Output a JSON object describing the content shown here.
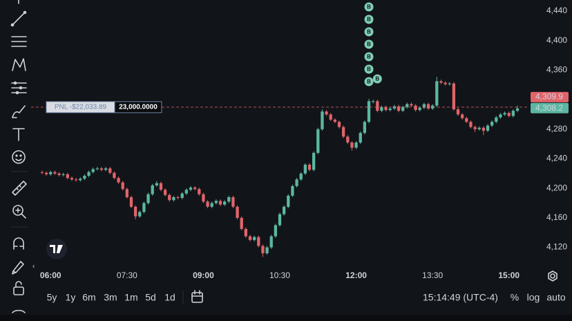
{
  "chart_data": {
    "type": "candlestick",
    "x": [
      350,
      355,
      360,
      365,
      370,
      375,
      380,
      385,
      390,
      395,
      400,
      405,
      410,
      415,
      420,
      425,
      430,
      435,
      440,
      445,
      450,
      455,
      460,
      465,
      470,
      475,
      480,
      485,
      490,
      495,
      500,
      505,
      510,
      515,
      520,
      525,
      530,
      535,
      540,
      545,
      550,
      555,
      560,
      565,
      570,
      575,
      580,
      585,
      590,
      595,
      600,
      605,
      610,
      615,
      620,
      625,
      630,
      635,
      640,
      645,
      650,
      655,
      660,
      665,
      670,
      675,
      680,
      685,
      690,
      695,
      700,
      705,
      710,
      715,
      720,
      725,
      730,
      735,
      740,
      745,
      750,
      755,
      760,
      765,
      770,
      775,
      780,
      785,
      790,
      795,
      800,
      805,
      810,
      815,
      820,
      825,
      830,
      835,
      840,
      845,
      850,
      855,
      860,
      865,
      870,
      875,
      880,
      885,
      890,
      895,
      900,
      905,
      910
    ],
    "open": [
      4222,
      4221,
      4219,
      4222,
      4220,
      4218,
      4219,
      4214,
      4212,
      4211,
      4213,
      4217,
      4222,
      4226,
      4227,
      4225,
      4227,
      4221,
      4214,
      4208,
      4199,
      4188,
      4175,
      4162,
      4168,
      4180,
      4192,
      4204,
      4207,
      4198,
      4191,
      4184,
      4188,
      4187,
      4193,
      4198,
      4201,
      4199,
      4192,
      4182,
      4175,
      4180,
      4183,
      4178,
      4182,
      4188,
      4175,
      4160,
      4145,
      4135,
      4130,
      4134,
      4122,
      4112,
      4120,
      4135,
      4150,
      4165,
      4175,
      4190,
      4203,
      4212,
      4220,
      4232,
      4225,
      4248,
      4280,
      4304,
      4300,
      4293,
      4290,
      4283,
      4270,
      4262,
      4255,
      4262,
      4275,
      4290,
      4318,
      4318,
      4305,
      4310,
      4306,
      4308,
      4311,
      4305,
      4310,
      4314,
      4312,
      4306,
      4309,
      4314,
      4308,
      4312,
      4345,
      4343,
      4341,
      4342,
      4307,
      4300,
      4295,
      4290,
      4283,
      4280,
      4282,
      4278,
      4285,
      4290,
      4296,
      4300,
      4302,
      4298,
      4305
    ],
    "high": [
      4224,
      4223,
      4224,
      4224,
      4222,
      4221,
      4221,
      4216,
      4214,
      4215,
      4219,
      4224,
      4228,
      4229,
      4229,
      4229,
      4229,
      4223,
      4216,
      4210,
      4201,
      4190,
      4177,
      4170,
      4182,
      4194,
      4206,
      4210,
      4209,
      4200,
      4193,
      4190,
      4190,
      4195,
      4200,
      4203,
      4203,
      4201,
      4194,
      4184,
      4182,
      4185,
      4185,
      4184,
      4190,
      4190,
      4177,
      4162,
      4147,
      4137,
      4136,
      4136,
      4124,
      4122,
      4137,
      4152,
      4167,
      4177,
      4192,
      4205,
      4214,
      4222,
      4234,
      4234,
      4250,
      4282,
      4307,
      4306,
      4302,
      4295,
      4292,
      4285,
      4272,
      4264,
      4264,
      4277,
      4292,
      4321,
      4320,
      4320,
      4312,
      4312,
      4310,
      4313,
      4313,
      4312,
      4316,
      4316,
      4314,
      4311,
      4316,
      4316,
      4314,
      4351,
      4347,
      4345,
      4344,
      4344,
      4309,
      4302,
      4297,
      4292,
      4285,
      4284,
      4284,
      4287,
      4292,
      4298,
      4302,
      4304,
      4304,
      4307,
      4312
    ],
    "low": [
      4219,
      4217,
      4217,
      4218,
      4216,
      4216,
      4212,
      4210,
      4209,
      4209,
      4211,
      4215,
      4220,
      4224,
      4223,
      4223,
      4219,
      4212,
      4206,
      4197,
      4186,
      4173,
      4158,
      4160,
      4166,
      4178,
      4190,
      4202,
      4196,
      4189,
      4182,
      4182,
      4185,
      4185,
      4191,
      4196,
      4197,
      4190,
      4180,
      4173,
      4173,
      4178,
      4176,
      4176,
      4180,
      4173,
      4158,
      4143,
      4133,
      4128,
      4128,
      4120,
      4107,
      4110,
      4118,
      4133,
      4148,
      4163,
      4173,
      4188,
      4201,
      4210,
      4218,
      4223,
      4223,
      4246,
      4278,
      4298,
      4291,
      4288,
      4281,
      4268,
      4260,
      4251,
      4253,
      4260,
      4273,
      4288,
      4315,
      4303,
      4303,
      4304,
      4304,
      4306,
      4303,
      4303,
      4308,
      4310,
      4304,
      4304,
      4307,
      4306,
      4306,
      4310,
      4341,
      4339,
      4339,
      4305,
      4298,
      4293,
      4288,
      4281,
      4276,
      4278,
      4272,
      4276,
      4283,
      4288,
      4294,
      4298,
      4296,
      4296,
      4303
    ],
    "close": [
      4221,
      4219,
      4222,
      4220,
      4218,
      4219,
      4214,
      4212,
      4211,
      4213,
      4217,
      4222,
      4226,
      4227,
      4225,
      4227,
      4221,
      4214,
      4208,
      4199,
      4188,
      4175,
      4162,
      4168,
      4180,
      4192,
      4204,
      4207,
      4198,
      4191,
      4184,
      4188,
      4187,
      4193,
      4198,
      4201,
      4199,
      4192,
      4182,
      4175,
      4180,
      4183,
      4178,
      4182,
      4188,
      4175,
      4160,
      4145,
      4135,
      4130,
      4134,
      4122,
      4112,
      4120,
      4135,
      4150,
      4165,
      4175,
      4190,
      4203,
      4212,
      4220,
      4232,
      4225,
      4248,
      4280,
      4304,
      4300,
      4293,
      4290,
      4283,
      4270,
      4262,
      4255,
      4262,
      4275,
      4290,
      4318,
      4318,
      4305,
      4310,
      4306,
      4308,
      4311,
      4305,
      4310,
      4314,
      4312,
      4306,
      4309,
      4314,
      4308,
      4312,
      4345,
      4343,
      4341,
      4342,
      4307,
      4300,
      4295,
      4290,
      4283,
      4280,
      4282,
      4278,
      4285,
      4290,
      4296,
      4300,
      4302,
      4298,
      4305,
      4308.2
    ],
    "colors": {
      "up": "#5cb7a2",
      "down": "#e0646a",
      "marker": "#7fcfb6"
    },
    "xlim": [
      337,
      923
    ],
    "xticks": [
      {
        "value": 360,
        "label": "06:00"
      },
      {
        "value": 450,
        "label": "07:30"
      },
      {
        "value": 540,
        "label": "09:00"
      },
      {
        "value": 630,
        "label": "10:30"
      },
      {
        "value": 720,
        "label": "12:00"
      },
      {
        "value": 810,
        "label": "13:30"
      },
      {
        "value": 900,
        "label": "15:00"
      }
    ],
    "ylim": [
      4094.3,
      4455
    ],
    "yticks": [
      {
        "value": 4120,
        "label": "4,120"
      },
      {
        "value": 4160,
        "label": "4,160"
      },
      {
        "value": 4200,
        "label": "4,200"
      },
      {
        "value": 4240,
        "label": "4,240"
      },
      {
        "value": 4280,
        "label": "4,280"
      },
      {
        "value": 4360,
        "label": "4,360"
      },
      {
        "value": 4400,
        "label": "4,400"
      },
      {
        "value": 4440,
        "label": "4,440"
      }
    ],
    "position": {
      "pnl": {
        "value": -22033.89,
        "label": "PNL -$22,033.89"
      },
      "quantity": {
        "value": 23000,
        "label": "23,000.0000"
      },
      "price": {
        "value": 4309.9,
        "label": "4,309.9"
      }
    },
    "last_price": {
      "value": 4308.2,
      "label": "4,308.2"
    },
    "trade_markers": {
      "x": [
        735,
        735,
        735,
        735,
        735,
        735,
        735,
        745
      ],
      "labels": [
        "B",
        "B",
        "B",
        "B",
        "B",
        "B",
        "B",
        "B"
      ]
    }
  },
  "toolbar": {
    "timeframes": [
      "5y",
      "1y",
      "6m",
      "3m",
      "1m",
      "5d",
      "1d"
    ],
    "clock": "15:14:49 (UTC-4)",
    "options": [
      "%",
      "log",
      "auto"
    ]
  }
}
